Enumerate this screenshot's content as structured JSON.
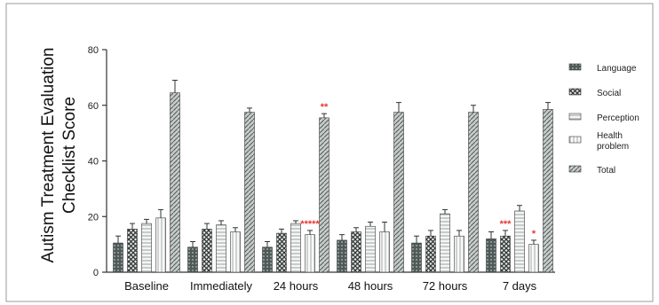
{
  "chart_data": {
    "type": "bar",
    "ylabel_lines": [
      "Autism Treatment Evaluation",
      "Checklist Score"
    ],
    "ylim": [
      0,
      80
    ],
    "yticks": [
      "0",
      "20",
      "40",
      "60",
      "80"
    ],
    "categories": [
      "Baseline",
      "Immediately",
      "24 hours",
      "48 hours",
      "72 hours",
      "7 days"
    ],
    "series": [
      {
        "name": "Language",
        "values": [
          10.5,
          9,
          9,
          11.5,
          10.5,
          12
        ],
        "errors": [
          2.5,
          2,
          2,
          2,
          2.5,
          2.5
        ],
        "fill": "#4e5a58"
      },
      {
        "name": "Social",
        "values": [
          15.5,
          15.5,
          14,
          14.5,
          13,
          13
        ],
        "errors": [
          2,
          2,
          1.5,
          1.5,
          2,
          2
        ],
        "fill": "#59605e"
      },
      {
        "name": "Perception",
        "values": [
          17.5,
          17,
          17.5,
          16.5,
          21,
          22
        ],
        "errors": [
          1.5,
          1.5,
          1,
          1.5,
          1.5,
          2
        ],
        "fill": "#dfe3e0"
      },
      {
        "name": "Health problem",
        "values": [
          19.5,
          14.5,
          13.5,
          14.5,
          13,
          10
        ],
        "errors": [
          3,
          1.5,
          1.5,
          3.5,
          2,
          1.5
        ],
        "fill": "#f0f2f0"
      },
      {
        "name": "Total",
        "values": [
          64.5,
          57.5,
          55.5,
          57.5,
          57.5,
          58.5
        ],
        "errors": [
          4.5,
          1.5,
          1.5,
          3.5,
          2.5,
          2.5
        ],
        "fill": "#9aa29e"
      }
    ],
    "annotations": [
      {
        "text": "**",
        "category": 2,
        "series": 4
      },
      {
        "text": "*****",
        "category": 2,
        "series": 3
      },
      {
        "text": "***",
        "category": 5,
        "series": 1
      },
      {
        "text": "*",
        "category": 5,
        "series": 3
      }
    ],
    "legend_position": "right",
    "grid": false
  }
}
